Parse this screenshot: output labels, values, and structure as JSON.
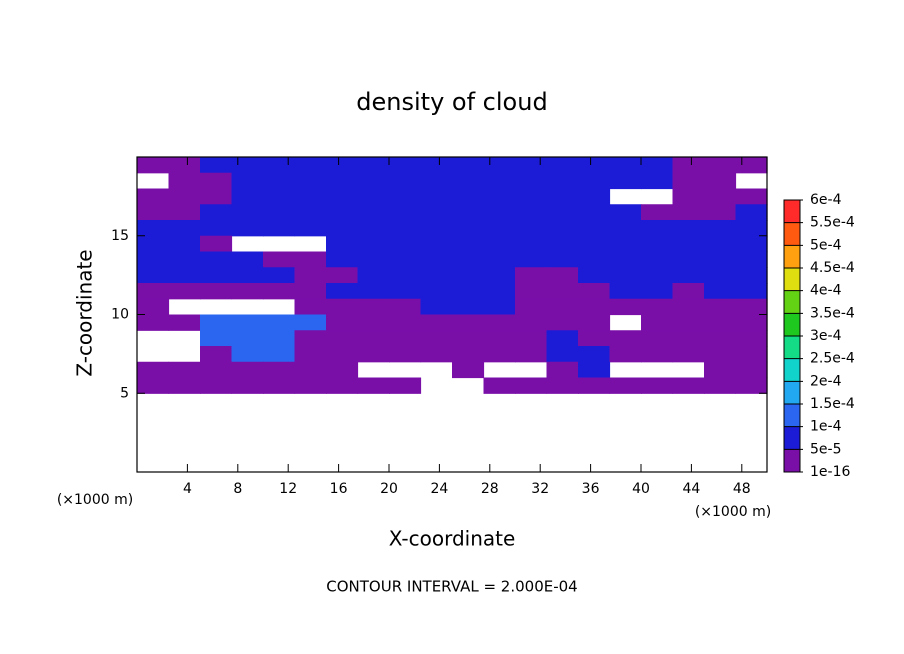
{
  "chart_data": {
    "type": "contour",
    "title": "density of cloud",
    "x_label": "X-coordinate",
    "y_label": "Z-coordinate",
    "x_unit": "(×1000 m)",
    "annotation": "CONTOUR INTERVAL = 2.000E-04",
    "xlim": [
      0,
      50
    ],
    "ylim": [
      0,
      20
    ],
    "xticks": [
      4,
      8,
      12,
      16,
      20,
      24,
      28,
      32,
      36,
      40,
      44,
      48
    ],
    "yticks": [
      5,
      10,
      15
    ],
    "colorbar": {
      "levels": [
        {
          "value": 1e-16,
          "label": "1e-16"
        },
        {
          "value": 5e-05,
          "label": "5e-5"
        },
        {
          "value": 0.0001,
          "label": "1e-4"
        },
        {
          "value": 0.00015,
          "label": "1.5e-4"
        },
        {
          "value": 0.0002,
          "label": "2e-4"
        },
        {
          "value": 0.00025,
          "label": "2.5e-4"
        },
        {
          "value": 0.0003,
          "label": "3e-4"
        },
        {
          "value": 0.00035,
          "label": "3.5e-4"
        },
        {
          "value": 0.0004,
          "label": "4e-4"
        },
        {
          "value": 0.00045,
          "label": "4.5e-4"
        },
        {
          "value": 0.0005,
          "label": "5e-4"
        },
        {
          "value": 0.00055,
          "label": "5.5e-4"
        },
        {
          "value": 0.0006,
          "label": "6e-4"
        }
      ],
      "colors": [
        "#7a0fa8",
        "#1c1cd6",
        "#2a66f0",
        "#22a8f0",
        "#12d2cc",
        "#14dc86",
        "#1ec81e",
        "#64d214",
        "#dede10",
        "#ffa010",
        "#ff5a10",
        "#ff2a2a"
      ]
    },
    "field": {
      "x": [
        1.25,
        3.75,
        6.25,
        8.75,
        11.25,
        13.75,
        16.25,
        18.75,
        21.25,
        23.75,
        26.25,
        28.75,
        31.25,
        33.75,
        36.25,
        38.75,
        41.25,
        43.75,
        46.25,
        48.75
      ],
      "z": [
        19.5,
        18.5,
        17.5,
        16.5,
        15.5,
        14.5,
        13.5,
        12.5,
        11.5,
        10.5,
        9.5,
        8.5,
        7.5,
        6.5,
        5.5
      ],
      "values": [
        [
          2e-05,
          2e-05,
          7e-05,
          7e-05,
          7e-05,
          7e-05,
          7e-05,
          7e-05,
          7e-05,
          7e-05,
          7e-05,
          7e-05,
          7e-05,
          7e-05,
          7e-05,
          7e-05,
          7e-05,
          2e-05,
          2e-05,
          2e-05
        ],
        [
          null,
          2e-05,
          2e-05,
          7e-05,
          7e-05,
          7e-05,
          7e-05,
          7e-05,
          7e-05,
          7e-05,
          7e-05,
          7e-05,
          7e-05,
          7e-05,
          7e-05,
          7e-05,
          7e-05,
          2e-05,
          2e-05,
          null
        ],
        [
          2e-05,
          2e-05,
          2e-05,
          7e-05,
          7e-05,
          7e-05,
          7e-05,
          7e-05,
          7e-05,
          7e-05,
          7e-05,
          7e-05,
          7e-05,
          7e-05,
          7e-05,
          null,
          null,
          2e-05,
          2e-05,
          2e-05
        ],
        [
          2e-05,
          2e-05,
          7e-05,
          7e-05,
          7e-05,
          7e-05,
          7e-05,
          7e-05,
          7e-05,
          7e-05,
          7e-05,
          7e-05,
          7e-05,
          7e-05,
          7e-05,
          7e-05,
          2e-05,
          2e-05,
          2e-05,
          7e-05
        ],
        [
          7e-05,
          7e-05,
          7e-05,
          7e-05,
          7e-05,
          7e-05,
          7e-05,
          7e-05,
          7e-05,
          7e-05,
          7e-05,
          7e-05,
          7e-05,
          7e-05,
          7e-05,
          7e-05,
          7e-05,
          7e-05,
          7e-05,
          7e-05
        ],
        [
          7e-05,
          7e-05,
          2e-05,
          null,
          null,
          null,
          7e-05,
          7e-05,
          7e-05,
          7e-05,
          7e-05,
          7e-05,
          7e-05,
          7e-05,
          7e-05,
          7e-05,
          7e-05,
          7e-05,
          7e-05,
          7e-05
        ],
        [
          7e-05,
          7e-05,
          7e-05,
          7e-05,
          2e-05,
          2e-05,
          7e-05,
          7e-05,
          7e-05,
          7e-05,
          7e-05,
          7e-05,
          7e-05,
          7e-05,
          7e-05,
          7e-05,
          7e-05,
          7e-05,
          7e-05,
          7e-05
        ],
        [
          7e-05,
          7e-05,
          7e-05,
          7e-05,
          7e-05,
          2e-05,
          2e-05,
          7e-05,
          7e-05,
          7e-05,
          7e-05,
          7e-05,
          2e-05,
          2e-05,
          7e-05,
          7e-05,
          7e-05,
          7e-05,
          7e-05,
          7e-05
        ],
        [
          2e-05,
          2e-05,
          2e-05,
          2e-05,
          2e-05,
          2e-05,
          7e-05,
          7e-05,
          7e-05,
          7e-05,
          7e-05,
          7e-05,
          2e-05,
          2e-05,
          2e-05,
          7e-05,
          7e-05,
          2e-05,
          7e-05,
          7e-05
        ],
        [
          2e-05,
          null,
          null,
          null,
          null,
          2e-05,
          2e-05,
          2e-05,
          2e-05,
          7e-05,
          7e-05,
          7e-05,
          2e-05,
          2e-05,
          2e-05,
          2e-05,
          2e-05,
          2e-05,
          2e-05,
          2e-05
        ],
        [
          2e-05,
          2e-05,
          0.00012,
          0.00012,
          0.00012,
          0.00012,
          2e-05,
          2e-05,
          2e-05,
          2e-05,
          2e-05,
          2e-05,
          2e-05,
          2e-05,
          2e-05,
          null,
          2e-05,
          2e-05,
          2e-05,
          2e-05
        ],
        [
          null,
          null,
          0.00012,
          0.00012,
          0.00012,
          2e-05,
          2e-05,
          2e-05,
          2e-05,
          2e-05,
          2e-05,
          2e-05,
          2e-05,
          7e-05,
          2e-05,
          2e-05,
          2e-05,
          2e-05,
          2e-05,
          2e-05
        ],
        [
          null,
          null,
          2e-05,
          0.00012,
          0.00012,
          2e-05,
          2e-05,
          2e-05,
          2e-05,
          2e-05,
          2e-05,
          2e-05,
          2e-05,
          7e-05,
          7e-05,
          2e-05,
          2e-05,
          2e-05,
          2e-05,
          2e-05
        ],
        [
          2e-05,
          2e-05,
          2e-05,
          2e-05,
          2e-05,
          2e-05,
          2e-05,
          null,
          null,
          null,
          2e-05,
          null,
          null,
          2e-05,
          7e-05,
          null,
          null,
          null,
          2e-05,
          2e-05
        ],
        [
          2e-05,
          2e-05,
          2e-05,
          2e-05,
          2e-05,
          2e-05,
          2e-05,
          2e-05,
          2e-05,
          null,
          null,
          2e-05,
          2e-05,
          2e-05,
          2e-05,
          2e-05,
          2e-05,
          2e-05,
          2e-05,
          2e-05
        ]
      ]
    }
  }
}
